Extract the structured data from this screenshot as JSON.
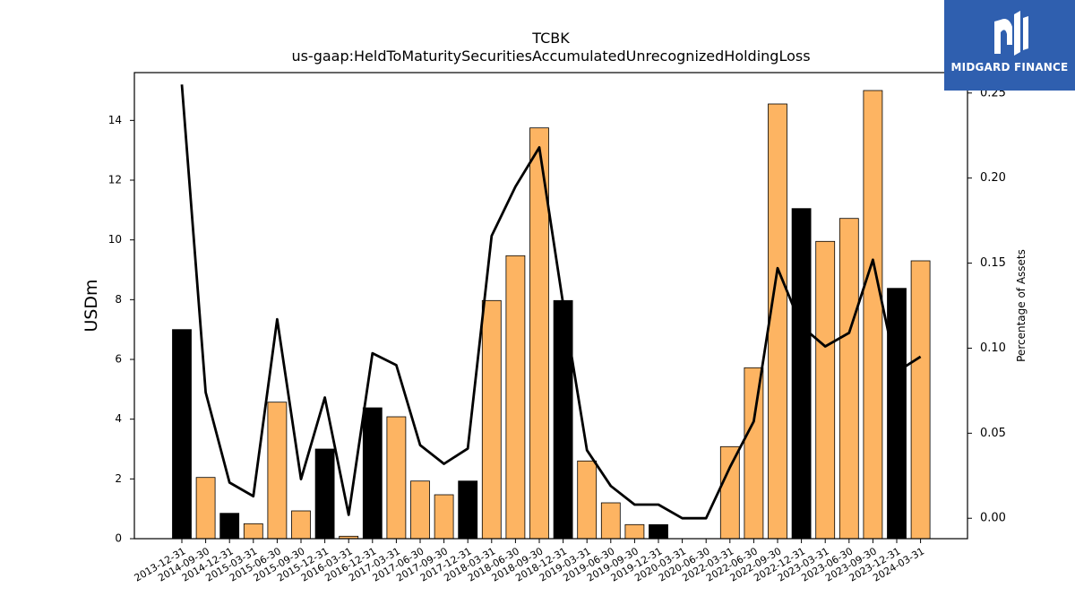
{
  "logo": {
    "text": "MIDGARD FINANCE"
  },
  "chart_data": {
    "type": "bar",
    "title": "TCBK",
    "subtitle": "us-gaap:HeldToMaturitySecuritiesAccumulatedUnrecognizedHoldingLoss",
    "ylabel": "USDm",
    "y2label": "Percentage of Assets",
    "ylim": [
      0,
      15.6
    ],
    "y2lim": [
      -0.012,
      0.262
    ],
    "yticks": [
      "0",
      "2",
      "4",
      "6",
      "8",
      "10",
      "12",
      "14"
    ],
    "y2ticks": [
      "0.00",
      "0.05",
      "0.10",
      "0.15",
      "0.20",
      "0.25"
    ],
    "colors": {
      "annual": "#000000",
      "quarter": "#fdb462",
      "line": "#000000"
    },
    "categories": [
      "2013-12-31",
      "2014-09-30",
      "2014-12-31",
      "2015-03-31",
      "2015-06-30",
      "2015-09-30",
      "2015-12-31",
      "2016-03-31",
      "2016-12-31",
      "2017-03-31",
      "2017-06-30",
      "2017-09-30",
      "2017-12-31",
      "2018-03-31",
      "2018-06-30",
      "2018-09-30",
      "2018-12-31",
      "2019-03-31",
      "2019-06-30",
      "2019-09-30",
      "2019-12-31",
      "2020-03-31",
      "2020-06-30",
      "2022-03-31",
      "2022-06-30",
      "2022-09-30",
      "2022-12-31",
      "2023-03-31",
      "2023-06-30",
      "2023-09-30",
      "2023-12-31",
      "2024-03-31"
    ],
    "series": [
      {
        "values": [
          7.0,
          2.05,
          0.85,
          0.5,
          4.57,
          0.93,
          3.0,
          0.08,
          4.38,
          4.08,
          1.93,
          1.47,
          1.93,
          7.97,
          9.47,
          13.75,
          7.97,
          2.6,
          1.2,
          0.47,
          0.47,
          0.0,
          0.0,
          3.08,
          5.72,
          14.55,
          11.05,
          9.95,
          10.72,
          15.0,
          8.38,
          9.3
        ],
        "bar_kind": [
          "annual",
          "quarter",
          "annual",
          "quarter",
          "quarter",
          "quarter",
          "annual",
          "quarter",
          "annual",
          "quarter",
          "quarter",
          "quarter",
          "annual",
          "quarter",
          "quarter",
          "quarter",
          "annual",
          "quarter",
          "quarter",
          "quarter",
          "annual",
          "quarter",
          "quarter",
          "quarter",
          "quarter",
          "quarter",
          "annual",
          "quarter",
          "quarter",
          "quarter",
          "annual",
          "quarter"
        ]
      },
      {
        "axis": "right",
        "values": [
          0.255,
          0.074,
          0.021,
          0.013,
          0.117,
          0.023,
          0.071,
          0.002,
          0.097,
          0.09,
          0.043,
          0.032,
          0.041,
          0.166,
          0.195,
          0.218,
          0.126,
          0.04,
          0.019,
          0.008,
          0.008,
          0.0,
          0.0,
          0.03,
          0.057,
          0.147,
          0.113,
          0.101,
          0.109,
          0.152,
          0.086,
          0.095
        ]
      }
    ]
  }
}
